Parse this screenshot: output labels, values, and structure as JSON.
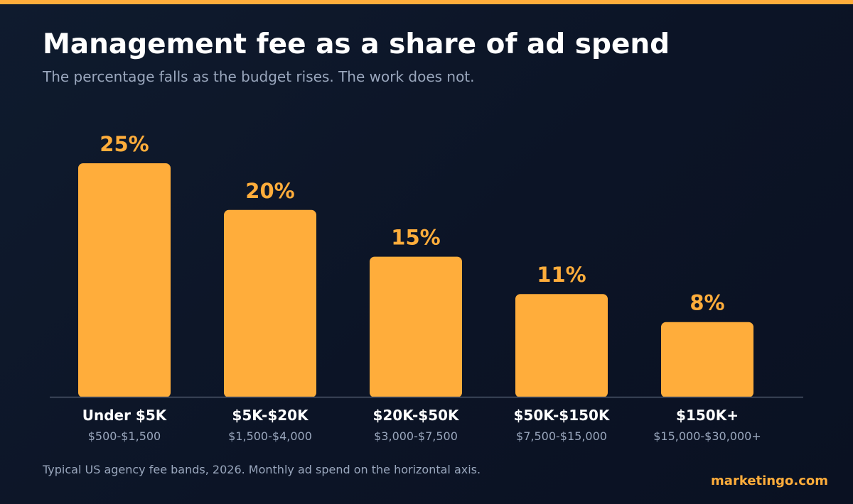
{
  "header": {
    "title": "Management fee as a share of ad spend",
    "subtitle": "The percentage falls as the budget rises. The work does not."
  },
  "footer": {
    "note": "Typical US agency fee bands, 2026. Monthly ad spend on the horizontal axis.",
    "brand": "marketingo.com"
  },
  "colors": {
    "accent": "#ffad3b",
    "axis": "#4a5568",
    "category_label": "#ffffff",
    "range_label": "#9aa7bd"
  },
  "chart_data": {
    "type": "bar",
    "title": "Management fee as a share of ad spend",
    "subtitle": "The percentage falls as the budget rises. The work does not.",
    "categories": [
      "Under $5K",
      "$5K-$20K",
      "$20K-$50K",
      "$50K-$150K",
      "$150K+"
    ],
    "category_ranges": [
      "$500-$1,500",
      "$1,500-$4,000",
      "$3,000-$7,500",
      "$7,500-$15,000",
      "$15,000-$30,000+"
    ],
    "values": [
      25,
      20,
      15,
      11,
      8
    ],
    "value_labels": [
      "25%",
      "20%",
      "15%",
      "11%",
      "8%"
    ],
    "ylim": [
      0,
      25
    ],
    "grid": false,
    "legend": "none"
  }
}
